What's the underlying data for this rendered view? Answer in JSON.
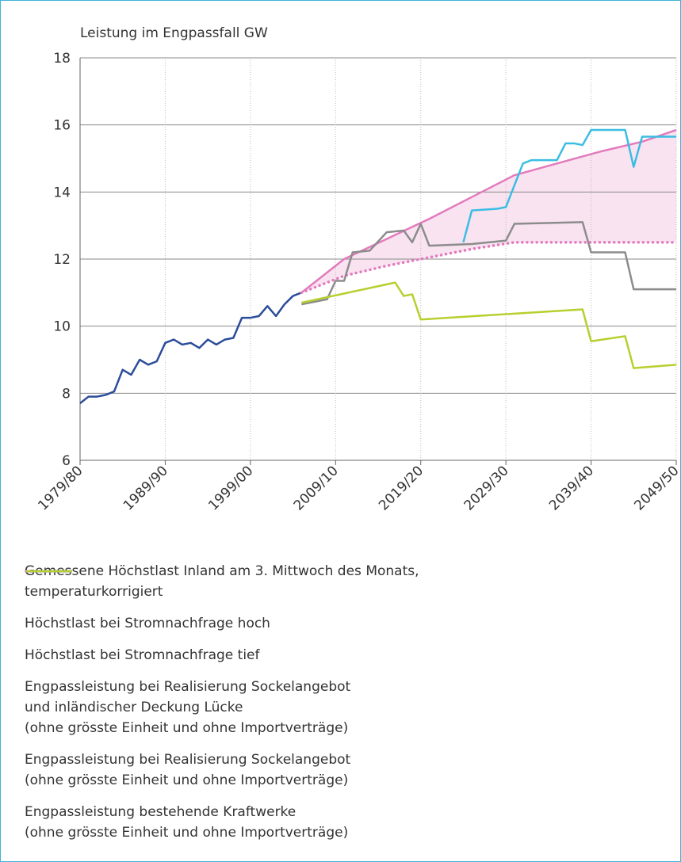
{
  "chart_data": {
    "type": "line",
    "ylabel": "Leistung im Engpassfall GW",
    "xlim": [
      1979,
      2049
    ],
    "xticks": [
      {
        "value": 1979,
        "label": "1979/80"
      },
      {
        "value": 1989,
        "label": "1989/90"
      },
      {
        "value": 1999,
        "label": "1999/00"
      },
      {
        "value": 2009,
        "label": "2009/10"
      },
      {
        "value": 2019,
        "label": "2019/20"
      },
      {
        "value": 2029,
        "label": "2029/30"
      },
      {
        "value": 2039,
        "label": "2039/40"
      },
      {
        "value": 2049,
        "label": "2049/50"
      }
    ],
    "ylim": [
      6,
      18
    ],
    "yticks": [
      6,
      8,
      10,
      12,
      14,
      16,
      18
    ],
    "grid": true,
    "series": [
      {
        "name": "Gemessene Höchstlast Inland am 3. Mittwoch des Monats,\ntemperaturkorrigiert",
        "color": "#2b4d9a",
        "dash": "solid",
        "x": [
          1979,
          1980,
          1981,
          1982,
          1983,
          1984,
          1985,
          1986,
          1987,
          1988,
          1989,
          1990,
          1991,
          1992,
          1993,
          1994,
          1995,
          1996,
          1997,
          1998,
          1999,
          2000,
          2001,
          2002,
          2003,
          2004,
          2005
        ],
        "values": [
          7.7,
          7.9,
          7.9,
          7.95,
          8.05,
          8.7,
          8.55,
          9.0,
          8.85,
          8.95,
          9.5,
          9.6,
          9.45,
          9.5,
          9.35,
          9.6,
          9.45,
          9.6,
          9.65,
          10.25,
          10.25,
          10.3,
          10.6,
          10.3,
          10.65,
          10.9,
          11.0
        ]
      },
      {
        "name": "Höchstlast bei Stromnachfrage hoch",
        "color": "#e27bbd",
        "dash": "solid",
        "x": [
          2005,
          2010,
          2015,
          2020,
          2025,
          2030,
          2035,
          2040,
          2045,
          2049
        ],
        "values": [
          11.0,
          12.0,
          12.6,
          13.2,
          13.85,
          14.5,
          14.85,
          15.2,
          15.5,
          15.85
        ]
      },
      {
        "name": "Höchstlast bei Stromnachfrage tief",
        "color": "#e27bbd",
        "dash": "dotted",
        "x": [
          2005,
          2010,
          2015,
          2020,
          2025,
          2030,
          2035,
          2040,
          2049
        ],
        "values": [
          11.0,
          11.5,
          11.8,
          12.05,
          12.3,
          12.5,
          12.5,
          12.5,
          12.5
        ]
      },
      {
        "name": "Engpassleistung bei Realisierung Sockelangebot\nund inländischer Deckung Lücke\n(ohne grösste Einheit und ohne Importverträge)",
        "color": "#3bbde3",
        "dash": "solid",
        "x": [
          2024,
          2025,
          2028,
          2029,
          2031,
          2032,
          2035,
          2036,
          2037,
          2038,
          2039,
          2043,
          2044,
          2045,
          2049
        ],
        "values": [
          12.5,
          13.45,
          13.5,
          13.55,
          14.85,
          14.95,
          14.95,
          15.45,
          15.45,
          15.4,
          15.85,
          15.85,
          14.75,
          15.65,
          15.65
        ]
      },
      {
        "name": "Engpassleistung bei Realisierung Sockelangebot\n(ohne grösste Einheit und ohne Importverträge)",
        "color": "#8c8c8c",
        "dash": "solid",
        "x": [
          2005,
          2008,
          2009,
          2010,
          2011,
          2013,
          2015,
          2017,
          2018,
          2019,
          2020,
          2025,
          2029,
          2030,
          2038,
          2039,
          2043,
          2044,
          2049
        ],
        "values": [
          10.65,
          10.8,
          11.35,
          11.35,
          12.2,
          12.25,
          12.8,
          12.85,
          12.5,
          13.05,
          12.4,
          12.45,
          12.55,
          13.05,
          13.1,
          12.2,
          12.2,
          11.1,
          11.1
        ]
      },
      {
        "name": "Engpassleistung bestehende Kraftwerke\n(ohne grösste Einheit und ohne Importverträge)",
        "color": "#b8cf2e",
        "dash": "solid",
        "x": [
          2005,
          2016,
          2017,
          2018,
          2019,
          2038,
          2039,
          2043,
          2044,
          2049
        ],
        "values": [
          10.7,
          11.3,
          10.9,
          10.95,
          10.2,
          10.5,
          9.55,
          9.7,
          8.75,
          8.85
        ]
      }
    ]
  }
}
